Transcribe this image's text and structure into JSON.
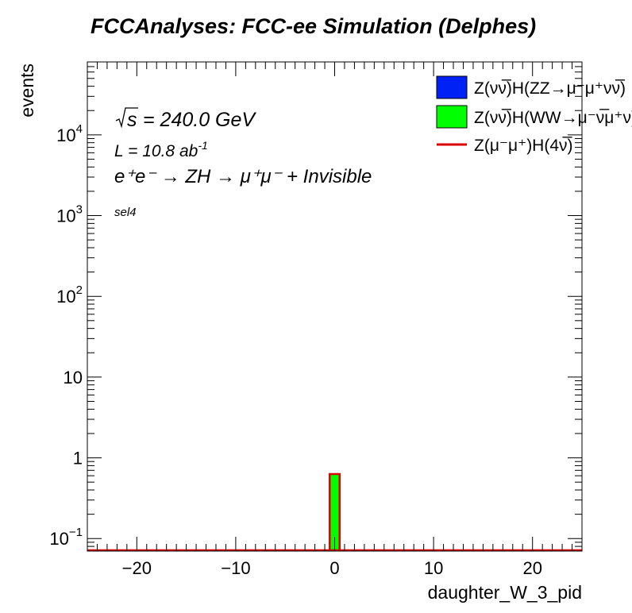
{
  "chart_data": {
    "type": "bar",
    "title": "FCCAnalyses: FCC-ee Simulation (Delphes)",
    "xlabel": "daughter_W_3_pid",
    "ylabel": "events",
    "xlim": [
      -25,
      25
    ],
    "ylim": [
      0.07,
      80000
    ],
    "yscale": "log",
    "x_ticks": [
      -20,
      -10,
      0,
      10,
      20
    ],
    "x_tick_labels": [
      "−20",
      "−10",
      "0",
      "10",
      "20"
    ],
    "y_ticks": [
      0.1,
      1,
      10,
      100,
      1000,
      10000
    ],
    "y_tick_labels": [
      {
        "base": "10",
        "exp": "−1"
      },
      {
        "base": "1",
        "exp": ""
      },
      {
        "base": "10",
        "exp": ""
      },
      {
        "base": "10",
        "exp": "2"
      },
      {
        "base": "10",
        "exp": "3"
      },
      {
        "base": "10",
        "exp": "4"
      }
    ],
    "grid": false,
    "legend_position": "top-right",
    "series": [
      {
        "name": "Z(νν̅)H(ZZ→μ⁻μ⁺νν̅)",
        "color": "#0021f5",
        "style": "filled",
        "bins": []
      },
      {
        "name": "Z(νν̅)H(WW→μ⁻ν̅μ⁺ν)",
        "color": "#00ff00",
        "style": "filled",
        "bins": [
          {
            "x_low": -0.5,
            "x_high": 0.5,
            "value": 0.63
          }
        ]
      },
      {
        "name": "Z(μ⁻μ⁺)H(4ν̅)",
        "color": "#dd0000",
        "style": "line",
        "bins": []
      }
    ],
    "annotations": {
      "sqrt_s": "= 240.0 GeV",
      "lumi_text": "L = 10.8 ab",
      "lumi_exp": "-1",
      "process": "e⁺e⁻ → ZH → μ⁺μ⁻ + Invisible",
      "selection": "sel4"
    }
  }
}
